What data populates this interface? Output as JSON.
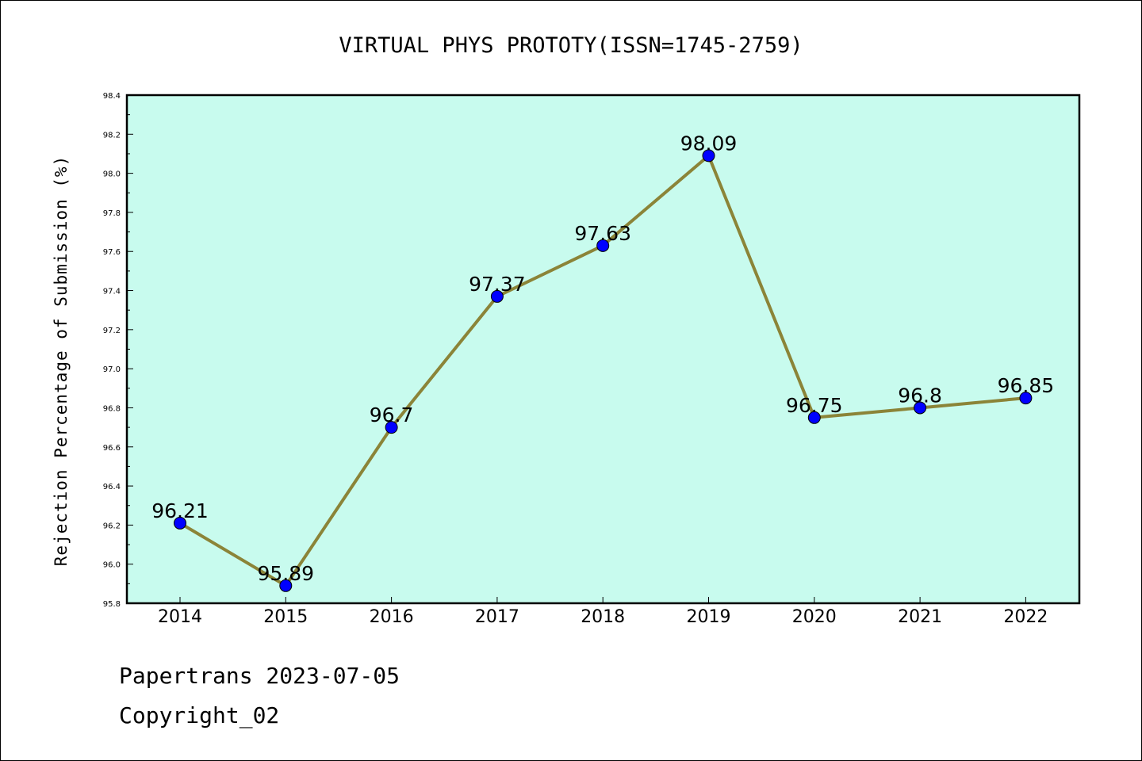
{
  "chart_data": {
    "type": "line",
    "title": "VIRTUAL PHYS PROTOTY(ISSN=1745-2759)",
    "ylabel": "Rejection Percentage of Submission (%)",
    "xlabel": "",
    "categories": [
      "2014",
      "2015",
      "2016",
      "2017",
      "2018",
      "2019",
      "2020",
      "2021",
      "2022"
    ],
    "series": [
      {
        "values": [
          96.21,
          95.89,
          96.7,
          97.37,
          97.63,
          98.09,
          96.75,
          96.8,
          96.85
        ],
        "labels": [
          "96.21",
          "95.89",
          "96.7",
          "97.37",
          "97.63",
          "98.09",
          "96.75",
          "96.8",
          "96.85"
        ]
      }
    ],
    "ylim": [
      95.8,
      98.4
    ],
    "yticks": [
      "95.8",
      "96.0",
      "96.2",
      "96.4",
      "96.6",
      "96.8",
      "97.0",
      "97.2",
      "97.4",
      "97.6",
      "97.8",
      "98.0",
      "98.2",
      "98.4"
    ],
    "grid": false,
    "colors": {
      "plot_background": "#c8fbee",
      "line": "#8b8438",
      "marker": "#0000ff",
      "axes": "#000000"
    }
  },
  "footer": {
    "line1": "Papertrans 2023-07-05",
    "line2": "Copyright_02"
  }
}
